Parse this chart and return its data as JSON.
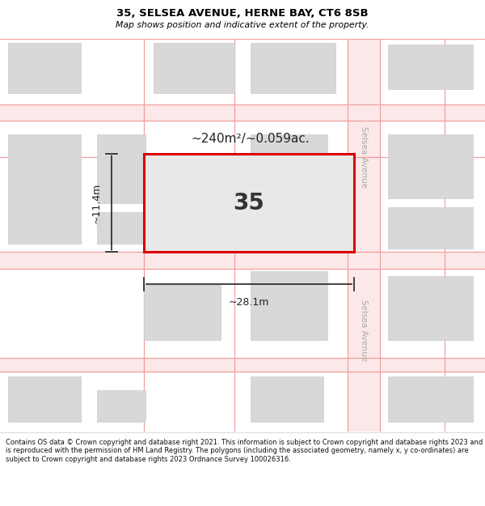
{
  "title_line1": "35, SELSEA AVENUE, HERNE BAY, CT6 8SB",
  "title_line2": "Map shows position and indicative extent of the property.",
  "footer_text": "Contains OS data © Crown copyright and database right 2021. This information is subject to Crown copyright and database rights 2023 and is reproduced with the permission of HM Land Registry. The polygons (including the associated geometry, namely x, y co-ordinates) are subject to Crown copyright and database rights 2023 Ordnance Survey 100026316.",
  "map_bg": "#ffffff",
  "road_line_color": "#f0a0a0",
  "road_fill_color": "#fce8e8",
  "building_fill": "#d8d8d8",
  "building_edge": "#cccccc",
  "highlighted_fill": "#e8e8e8",
  "highlighted_edge": "#dd0000",
  "street_label_color": "#aaaaaa",
  "dim_color": "#222222",
  "area_text": "~240m²/~0.059ac.",
  "plot_number": "35",
  "dim_width": "~28.1m",
  "dim_height": "~11.4m"
}
